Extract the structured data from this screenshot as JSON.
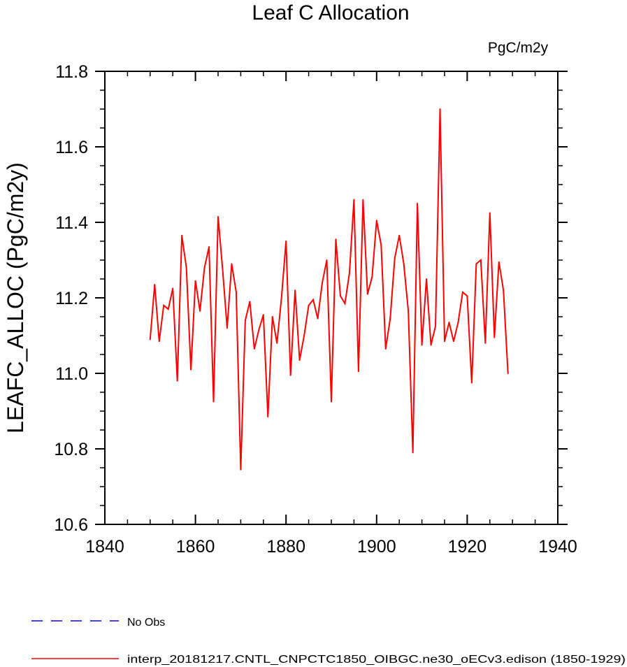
{
  "chart_data": {
    "type": "line",
    "title": "Leaf C Allocation",
    "units_label": "PgC/m2y",
    "xlabel": "",
    "ylabel": "LEAFC_ALLOC  (PgC/m2y)",
    "xlim": [
      1840,
      1940
    ],
    "ylim": [
      10.6,
      11.8
    ],
    "x_ticks": [
      1840,
      1860,
      1880,
      1900,
      1920,
      1940
    ],
    "x_tick_labels": [
      "1840",
      "1860",
      "1880",
      "1900",
      "1920",
      "1940"
    ],
    "y_ticks": [
      10.6,
      10.8,
      11.0,
      11.2,
      11.4,
      11.6,
      11.8
    ],
    "y_tick_labels": [
      "10.6",
      "10.8",
      "11.0",
      "11.2",
      "11.4",
      "11.6",
      "11.8"
    ],
    "grid": false,
    "legend_position": "bottom-left",
    "series": [
      {
        "name": "No Obs",
        "color": "#0000ff",
        "dash": "dashed",
        "x": [],
        "values": []
      },
      {
        "name": "interp_20181217.CNTL_CNPCTC1850_OIBGC.ne30_oECv3.edison (1850-1929)",
        "color": "#ff0000",
        "dash": "solid",
        "x": [
          1850,
          1851,
          1852,
          1853,
          1854,
          1855,
          1856,
          1857,
          1858,
          1859,
          1860,
          1861,
          1862,
          1863,
          1864,
          1865,
          1866,
          1867,
          1868,
          1869,
          1870,
          1871,
          1872,
          1873,
          1874,
          1875,
          1876,
          1877,
          1878,
          1879,
          1880,
          1881,
          1882,
          1883,
          1884,
          1885,
          1886,
          1887,
          1888,
          1889,
          1890,
          1891,
          1892,
          1893,
          1894,
          1895,
          1896,
          1897,
          1898,
          1899,
          1900,
          1901,
          1902,
          1903,
          1904,
          1905,
          1906,
          1907,
          1908,
          1909,
          1910,
          1911,
          1912,
          1913,
          1914,
          1915,
          1916,
          1917,
          1918,
          1919,
          1920,
          1921,
          1922,
          1923,
          1924,
          1925,
          1926,
          1927,
          1928,
          1929
        ],
        "values": [
          11.09,
          11.235,
          11.085,
          11.18,
          11.17,
          11.225,
          10.98,
          11.365,
          11.28,
          11.01,
          11.245,
          11.165,
          11.28,
          11.335,
          10.925,
          11.415,
          11.275,
          11.12,
          11.29,
          11.215,
          10.745,
          11.14,
          11.19,
          11.065,
          11.115,
          11.155,
          10.885,
          11.15,
          11.08,
          11.2,
          11.35,
          10.995,
          11.22,
          11.035,
          11.1,
          11.18,
          11.195,
          11.145,
          11.24,
          11.3,
          10.925,
          11.355,
          11.205,
          11.185,
          11.265,
          11.46,
          11.005,
          11.46,
          11.21,
          11.255,
          11.405,
          11.34,
          11.065,
          11.145,
          11.305,
          11.365,
          11.29,
          11.165,
          10.79,
          11.45,
          11.075,
          11.25,
          11.075,
          11.125,
          11.7,
          11.085,
          11.135,
          11.085,
          11.135,
          11.215,
          11.205,
          10.975,
          11.29,
          11.3,
          11.08,
          11.425,
          11.095,
          11.295,
          11.22,
          11.0
        ]
      }
    ]
  }
}
